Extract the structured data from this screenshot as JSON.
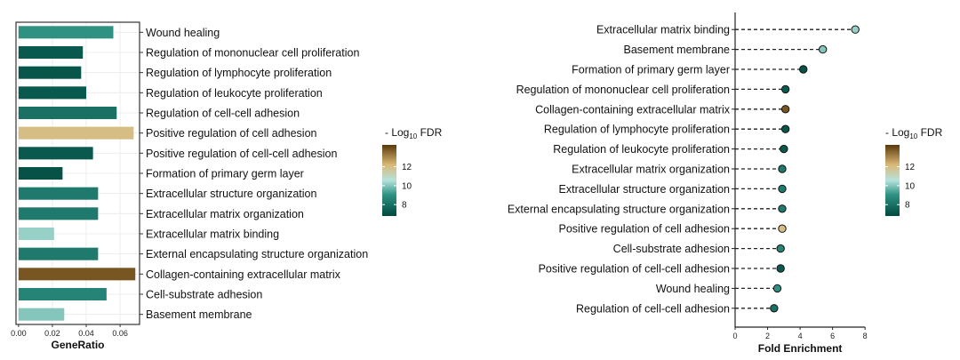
{
  "charts": {
    "left": {
      "chart_data": {
        "type": "bar",
        "orientation": "horizontal",
        "xlabel": "GeneRatio",
        "ylabel": "",
        "xlim": [
          -0.0015,
          0.0715
        ],
        "x_ticks": [
          "0.00",
          "0.02",
          "0.04",
          "0.06"
        ],
        "x_tick_values": [
          0.0,
          0.02,
          0.04,
          0.06
        ],
        "categories": [
          "Wound healing",
          "Regulation of mononuclear cell proliferation",
          "Regulation of lymphocyte proliferation",
          "Regulation of leukocyte proliferation",
          "Regulation of cell-cell adhesion",
          "Positive regulation of cell adhesion",
          "Positive regulation of cell-cell adhesion",
          "Formation of primary germ layer",
          "Extracellular structure organization",
          "Extracellular matrix organization",
          "Extracellular matrix binding",
          "External encapsulating structure organization",
          "Collagen-containing extracellular matrix",
          "Cell-substrate adhesion",
          "Basement membrane"
        ],
        "values": [
          0.056,
          0.038,
          0.037,
          0.04,
          0.058,
          0.068,
          0.044,
          0.026,
          0.047,
          0.047,
          0.021,
          0.047,
          0.069,
          0.052,
          0.027
        ],
        "fill_values": [
          9.0,
          7.3,
          7.2,
          7.3,
          8.0,
          12.0,
          7.3,
          7.1,
          8.3,
          8.3,
          10.2,
          8.3,
          13.8,
          8.6,
          10.0
        ],
        "grid": true
      }
    },
    "right": {
      "chart_data": {
        "type": "scatter",
        "subtype": "lollipop",
        "xlabel": "Fold Enrichment",
        "ylabel": "",
        "xlim": [
          0,
          8.1
        ],
        "x_ticks": [
          "0",
          "2",
          "4",
          "6",
          "8"
        ],
        "x_tick_values": [
          0,
          2,
          4,
          6,
          8
        ],
        "categories": [
          "Extracellular matrix binding",
          "Basement membrane",
          "Formation of primary germ layer",
          "Regulation of mononuclear cell proliferation",
          "Collagen-containing extracellular matrix",
          "Regulation of lymphocyte proliferation",
          "Regulation of leukocyte proliferation",
          "Extracellular matrix organization",
          "Extracellular structure organization",
          "External encapsulating structure organization",
          "Positive regulation of cell adhesion",
          "Cell-substrate adhesion",
          "Positive regulation of cell-cell adhesion",
          "Wound healing",
          "Regulation of cell-cell adhesion"
        ],
        "values": [
          7.4,
          5.4,
          4.2,
          3.1,
          3.1,
          3.1,
          3.0,
          2.9,
          2.9,
          2.9,
          2.9,
          2.8,
          2.8,
          2.6,
          2.4
        ],
        "fill_values": [
          10.2,
          10.0,
          7.1,
          7.3,
          13.8,
          7.2,
          7.3,
          8.3,
          8.3,
          8.3,
          12.0,
          8.6,
          7.3,
          9.0,
          8.0
        ],
        "grid": false
      }
    }
  },
  "legend": {
    "title_prefix": "- Log",
    "title_sub": "10",
    "title_suffix": " FDR",
    "ticks": [
      "12",
      "10",
      "8"
    ],
    "tick_values": [
      12,
      10,
      8
    ],
    "range": [
      6.8,
      14.3
    ],
    "gradient_colors": [
      "#00483e",
      "#2f9384",
      "#b6e3dc",
      "#dab877",
      "#5a3808"
    ]
  },
  "colors": {
    "dark_teal": "#00483e",
    "teal": "#2f9384",
    "pale_teal": "#b6e3dc",
    "tan": "#dab877",
    "dark_brown": "#5a3808",
    "connector": "#222222"
  }
}
